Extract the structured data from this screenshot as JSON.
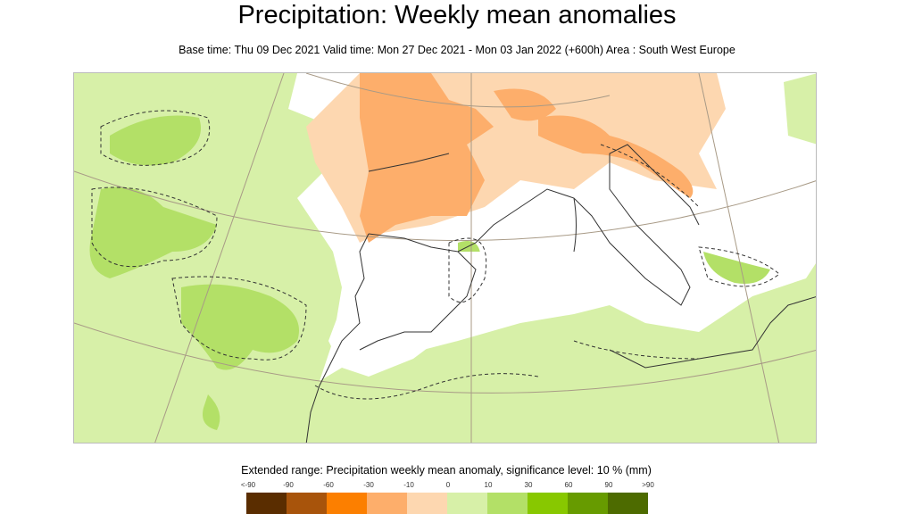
{
  "title": "Precipitation: Weekly mean anomalies",
  "subtitle": "Base time: Thu 09 Dec 2021 Valid time: Mon 27 Dec 2021 - Mon 03 Jan 2022 (+600h) Area : South West Europe",
  "legend": {
    "title": "Extended range: Precipitation weekly mean anomaly, significance level: 10 % (mm)",
    "ticks": [
      "<-90",
      "-90",
      "-60",
      "-30",
      "-10",
      "0",
      "10",
      "30",
      "60",
      "90",
      ">90"
    ],
    "colors": [
      "#5a2d00",
      "#a8540b",
      "#fc7f00",
      "#fdae6b",
      "#fdd7b0",
      "#d7f0a8",
      "#b3e067",
      "#88c800",
      "#679b00",
      "#4d6b00"
    ]
  },
  "map_colors": {
    "light_green": "#d7f0a8",
    "green": "#b3e067",
    "light_orange": "#fdd7b0",
    "orange": "#fdae6b"
  }
}
